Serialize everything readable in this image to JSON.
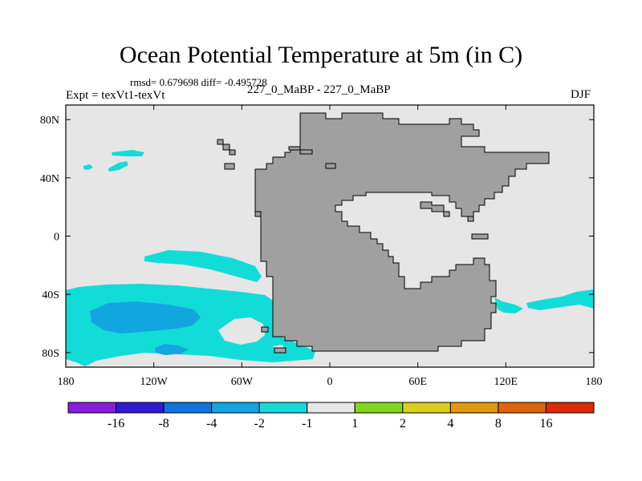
{
  "title": "Ocean Potential Temperature at 5m (in C)",
  "stats_line": "rmsd= 0.679698 diff= -0.495728",
  "left_label": "Expt = texVt1-texVt",
  "center_label": "227_0_MaBP - 227_0_MaBP",
  "right_label": "DJF",
  "map": {
    "projection": "cylindrical-equidistant",
    "lon_range": [
      -180,
      180
    ],
    "lat_range": [
      -90,
      90
    ],
    "lon_tick_labels": [
      "180",
      "120W",
      "60W",
      "0",
      "60E",
      "120E",
      "180"
    ],
    "lat_tick_labels": [
      "80N",
      "40N",
      "0",
      "40S",
      "80S"
    ],
    "background_color": "#e6e6e6",
    "land_color": "#a0a0a0"
  },
  "colorbar": {
    "labels": [
      "-16",
      "-8",
      "-4",
      "-2",
      "-1",
      "1",
      "2",
      "4",
      "8",
      "16"
    ],
    "colors": [
      "#8a1be0",
      "#3018d8",
      "#0f73e0",
      "#12a6e0",
      "#12dcd8",
      "#e6e6e6",
      "#82d818",
      "#dcd018",
      "#e09a0a",
      "#e0640a",
      "#e0280a"
    ]
  }
}
